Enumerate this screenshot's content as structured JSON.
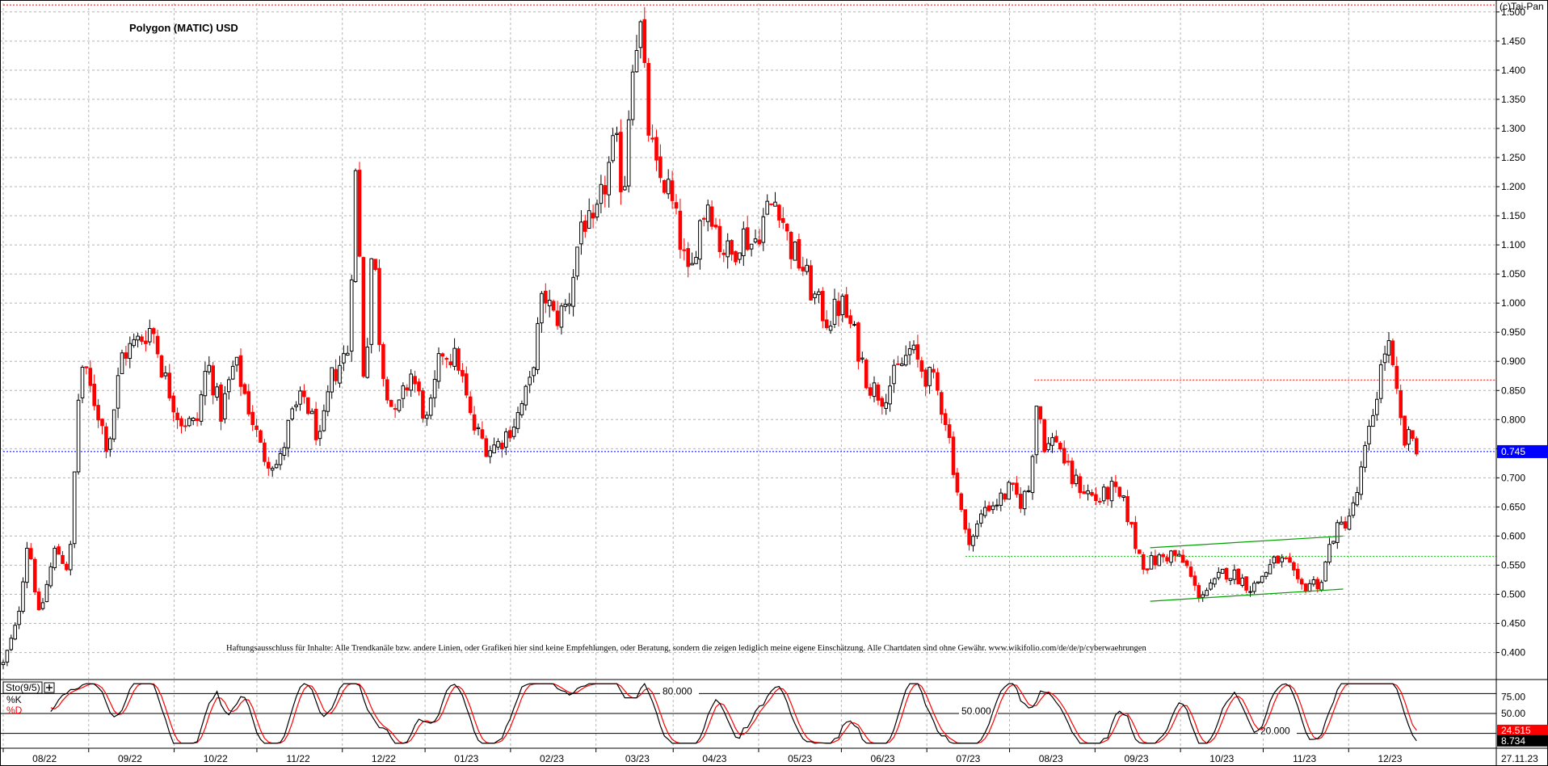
{
  "chart_data": {
    "type": "candlestick",
    "title": "Polygon (MATIC) USD",
    "watermark": "(c)Tai-Pan",
    "price_axis": {
      "ylim": [
        0.355,
        1.515
      ],
      "ticks": [
        0.4,
        0.45,
        0.5,
        0.55,
        0.6,
        0.65,
        0.7,
        0.75,
        0.8,
        0.85,
        0.9,
        0.95,
        1.0,
        1.05,
        1.1,
        1.15,
        1.2,
        1.25,
        1.3,
        1.35,
        1.4,
        1.45,
        1.5
      ],
      "tick_labels": [
        "0.400",
        "0.450",
        "0.500",
        "0.550",
        "0.600",
        "0.650",
        "0.700",
        "0.750",
        "0.800",
        "0.850",
        "0.900",
        "0.950",
        "1.000",
        "1.050",
        "1.100",
        "1.150",
        "1.200",
        "1.250",
        "1.300",
        "1.350",
        "1.400",
        "1.450",
        "1.500"
      ],
      "current_value": 0.745,
      "current_label": "0.745"
    },
    "x_axis": {
      "labels": [
        "08/22",
        "09/22",
        "10/22",
        "11/22",
        "12/22",
        "01/23",
        "02/23",
        "03/23",
        "04/23",
        "05/23",
        "06/23",
        "07/23",
        "08/23",
        "09/23",
        "10/23",
        "11/23",
        "12/23"
      ],
      "date_label": "27.11.23",
      "first_month": "2022-07",
      "last_date": "2023-11-27"
    },
    "colors": {
      "up": "#000000",
      "down": "#ff0000",
      "hline": "#0000ff",
      "channel": "#00a000",
      "grid": "#b4b4b4"
    },
    "price_anchors": [
      [
        "2022-07-01",
        0.38
      ],
      [
        "2022-07-06",
        0.45
      ],
      [
        "2022-07-10",
        0.6
      ],
      [
        "2022-07-14",
        0.46
      ],
      [
        "2022-07-20",
        0.58
      ],
      [
        "2022-07-25",
        0.54
      ],
      [
        "2022-07-29",
        0.9
      ],
      [
        "2022-08-04",
        0.82
      ],
      [
        "2022-08-08",
        0.75
      ],
      [
        "2022-08-13",
        0.91
      ],
      [
        "2022-08-20",
        0.94
      ],
      [
        "2022-08-24",
        0.96
      ],
      [
        "2022-08-28",
        0.88
      ],
      [
        "2022-09-03",
        0.8
      ],
      [
        "2022-09-09",
        0.79
      ],
      [
        "2022-09-13",
        0.9
      ],
      [
        "2022-09-18",
        0.81
      ],
      [
        "2022-09-23",
        0.9
      ],
      [
        "2022-09-30",
        0.79
      ],
      [
        "2022-10-03",
        0.74
      ],
      [
        "2022-10-09",
        0.72
      ],
      [
        "2022-10-13",
        0.8
      ],
      [
        "2022-10-18",
        0.84
      ],
      [
        "2022-10-24",
        0.76
      ],
      [
        "2022-10-28",
        0.87
      ],
      [
        "2022-11-03",
        0.92
      ],
      [
        "2022-11-06",
        1.24
      ],
      [
        "2022-11-09",
        0.84
      ],
      [
        "2022-11-12",
        1.12
      ],
      [
        "2022-11-15",
        0.9
      ],
      [
        "2022-11-20",
        0.8
      ],
      [
        "2022-11-26",
        0.88
      ],
      [
        "2022-12-02",
        0.79
      ],
      [
        "2022-12-07",
        0.92
      ],
      [
        "2022-12-13",
        0.9
      ],
      [
        "2022-12-18",
        0.79
      ],
      [
        "2022-12-24",
        0.75
      ],
      [
        "2022-12-28",
        0.76
      ],
      [
        "2023-01-03",
        0.8
      ],
      [
        "2023-01-08",
        0.86
      ],
      [
        "2023-01-13",
        1.02
      ],
      [
        "2023-01-17",
        0.97
      ],
      [
        "2023-01-22",
        1.0
      ],
      [
        "2023-01-27",
        1.15
      ],
      [
        "2023-01-31",
        1.12
      ],
      [
        "2023-02-04",
        1.2
      ],
      [
        "2023-02-08",
        1.28
      ],
      [
        "2023-02-11",
        1.18
      ],
      [
        "2023-02-14",
        1.42
      ],
      [
        "2023-02-17",
        1.48
      ],
      [
        "2023-02-20",
        1.3
      ],
      [
        "2023-02-23",
        1.22
      ],
      [
        "2023-02-27",
        1.2
      ],
      [
        "2023-03-03",
        1.12
      ],
      [
        "2023-03-07",
        1.03
      ],
      [
        "2023-03-10",
        1.13
      ],
      [
        "2023-03-14",
        1.18
      ],
      [
        "2023-03-18",
        1.1
      ],
      [
        "2023-03-22",
        1.08
      ],
      [
        "2023-03-26",
        1.12
      ],
      [
        "2023-03-30",
        1.1
      ],
      [
        "2023-04-04",
        1.16
      ],
      [
        "2023-04-08",
        1.18
      ],
      [
        "2023-04-12",
        1.1
      ],
      [
        "2023-04-17",
        1.06
      ],
      [
        "2023-04-21",
        1.01
      ],
      [
        "2023-04-26",
        0.97
      ],
      [
        "2023-05-01",
        1.0
      ],
      [
        "2023-05-06",
        0.94
      ],
      [
        "2023-05-11",
        0.86
      ],
      [
        "2023-05-16",
        0.84
      ],
      [
        "2023-05-21",
        0.88
      ],
      [
        "2023-05-26",
        0.92
      ],
      [
        "2023-05-31",
        0.88
      ],
      [
        "2023-06-04",
        0.86
      ],
      [
        "2023-06-08",
        0.8
      ],
      [
        "2023-06-12",
        0.68
      ],
      [
        "2023-06-15",
        0.6
      ],
      [
        "2023-06-18",
        0.6
      ],
      [
        "2023-06-22",
        0.65
      ],
      [
        "2023-06-27",
        0.66
      ],
      [
        "2023-07-01",
        0.68
      ],
      [
        "2023-07-05",
        0.66
      ],
      [
        "2023-07-08",
        0.68
      ],
      [
        "2023-07-11",
        0.84
      ],
      [
        "2023-07-14",
        0.75
      ],
      [
        "2023-07-18",
        0.77
      ],
      [
        "2023-07-23",
        0.7
      ],
      [
        "2023-07-28",
        0.68
      ],
      [
        "2023-08-02",
        0.66
      ],
      [
        "2023-08-07",
        0.68
      ],
      [
        "2023-08-12",
        0.65
      ],
      [
        "2023-08-16",
        0.58
      ],
      [
        "2023-08-19",
        0.55
      ],
      [
        "2023-08-24",
        0.56
      ],
      [
        "2023-08-29",
        0.57
      ],
      [
        "2023-09-03",
        0.55
      ],
      [
        "2023-09-07",
        0.5
      ],
      [
        "2023-09-12",
        0.51
      ],
      [
        "2023-09-17",
        0.54
      ],
      [
        "2023-09-22",
        0.53
      ],
      [
        "2023-09-27",
        0.51
      ],
      [
        "2023-10-02",
        0.54
      ],
      [
        "2023-10-06",
        0.56
      ],
      [
        "2023-10-10",
        0.55
      ],
      [
        "2023-10-14",
        0.51
      ],
      [
        "2023-10-18",
        0.52
      ],
      [
        "2023-10-22",
        0.52
      ],
      [
        "2023-10-26",
        0.6
      ],
      [
        "2023-10-30",
        0.62
      ],
      [
        "2023-11-03",
        0.65
      ],
      [
        "2023-11-06",
        0.72
      ],
      [
        "2023-11-09",
        0.79
      ],
      [
        "2023-11-12",
        0.87
      ],
      [
        "2023-11-15",
        0.94
      ],
      [
        "2023-11-18",
        0.85
      ],
      [
        "2023-11-21",
        0.76
      ],
      [
        "2023-11-24",
        0.77
      ],
      [
        "2023-11-27",
        0.745
      ]
    ],
    "horizontal_lines": [
      {
        "y": 0.745,
        "x_start": "2022-07-01",
        "style": "dotted",
        "color": "#0000ff"
      },
      {
        "y": 0.868,
        "x_start": "2023-07-10",
        "style": "dotted",
        "color": "#ff0000"
      },
      {
        "y": 0.565,
        "x_start": "2023-06-15",
        "style": "dotted",
        "color": "#00c000"
      },
      {
        "y": 1.512,
        "x_start": "2022-07-01",
        "style": "dotted",
        "color": "#ff0000"
      }
    ],
    "channel_lines": [
      {
        "x": [
          "2023-08-21",
          "2023-10-30"
        ],
        "y": [
          0.58,
          0.6
        ]
      },
      {
        "x": [
          "2023-08-21",
          "2023-10-30"
        ],
        "y": [
          0.488,
          0.509
        ]
      }
    ],
    "disclaimer": "Haftungsausschluss für Inhalte: Alle Trendkanäle bzw. andere Linien, oder Grafiken hier sind keine Empfehlungen, oder Beratung, sondern die zeigen lediglich meine eigene Einschätzung. Alle Chartdaten sind ohne Gewähr. www.wikifolio.com/de/de/p/cyberwaehrungen",
    "oscillator": {
      "name": "Sto(9/5)",
      "k_label": "%K",
      "d_label": "%D",
      "ylim": [
        0,
        100
      ],
      "ticks": [
        25,
        50,
        75
      ],
      "tick_labels": [
        "25",
        "50.00",
        "75.00"
      ],
      "levels": [
        {
          "value": 80,
          "label": "80.000"
        },
        {
          "value": 50,
          "label": "50.000"
        },
        {
          "value": 20,
          "label": "20.000"
        }
      ],
      "k_value": 8.734,
      "k_label_value": "8.734",
      "d_value": 24.515,
      "d_label_value": "24.515"
    }
  }
}
